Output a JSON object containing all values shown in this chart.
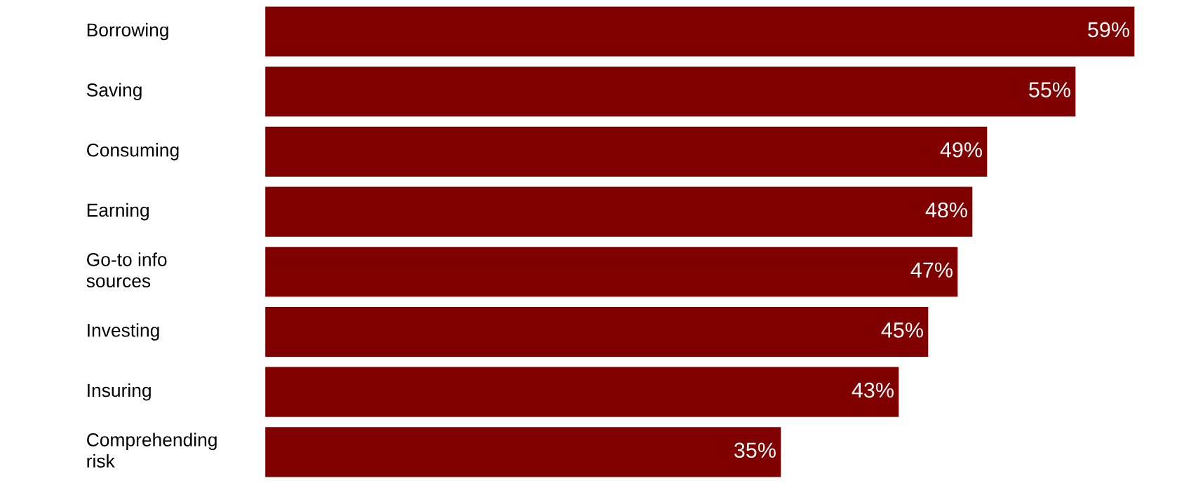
{
  "chart_data": {
    "type": "bar",
    "orientation": "horizontal",
    "categories": [
      "Borrowing",
      "Saving",
      "Consuming",
      "Earning",
      "Go-to info\nsources",
      "Investing",
      "Insuring",
      "Comprehending\nrisk"
    ],
    "values": [
      59,
      55,
      49,
      48,
      47,
      45,
      43,
      35
    ],
    "value_labels": [
      "59%",
      "55%",
      "49%",
      "48%",
      "47%",
      "45%",
      "43%",
      "35%"
    ],
    "color": "#800000"
  }
}
